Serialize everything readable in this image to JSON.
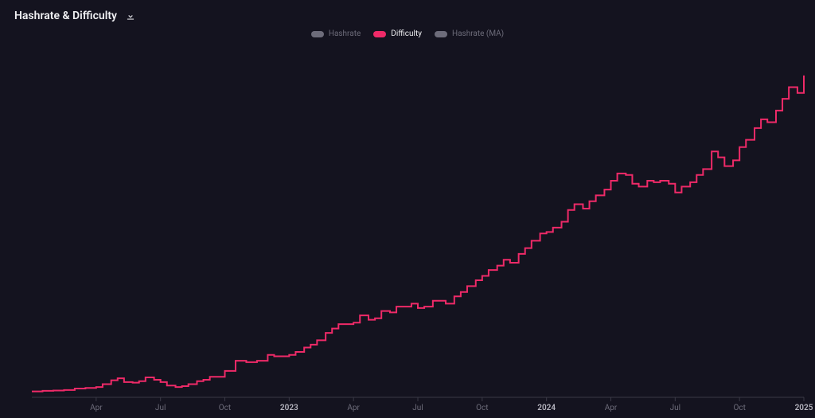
{
  "header": {
    "title": "Hashrate & Difficulty"
  },
  "legend": [
    {
      "key": "hashrate",
      "label": "Hashrate",
      "color": "#6d6c7a",
      "active": false
    },
    {
      "key": "difficulty",
      "label": "Difficulty",
      "color": "#ef2a68",
      "active": true
    },
    {
      "key": "hashrate_ma",
      "label": "Hashrate (MA)",
      "color": "#6d6c7a",
      "active": false
    }
  ],
  "chart": {
    "type": "line",
    "step_mode": "step-after",
    "background_color": "#14131f",
    "axis_color": "#3a3946",
    "tick_color": "#3a3946",
    "label_color": "#6d6c7a",
    "label_color_strong": "#b7b6c0",
    "tick_fontsize": 10,
    "title_fontsize": 14,
    "line_width": 2,
    "xlim": [
      0,
      36
    ],
    "ylim": [
      0,
      120
    ],
    "x_ticks": [
      {
        "pos": 3,
        "label": "Apr",
        "strong": false
      },
      {
        "pos": 6,
        "label": "Jul",
        "strong": false
      },
      {
        "pos": 9,
        "label": "Oct",
        "strong": false
      },
      {
        "pos": 12,
        "label": "2023",
        "strong": true
      },
      {
        "pos": 15,
        "label": "Apr",
        "strong": false
      },
      {
        "pos": 18,
        "label": "Jul",
        "strong": false
      },
      {
        "pos": 21,
        "label": "Oct",
        "strong": false
      },
      {
        "pos": 24,
        "label": "2024",
        "strong": true
      },
      {
        "pos": 27,
        "label": "Apr",
        "strong": false
      },
      {
        "pos": 30,
        "label": "Jul",
        "strong": false
      },
      {
        "pos": 33,
        "label": "Oct",
        "strong": false
      },
      {
        "pos": 36,
        "label": "2025",
        "strong": true
      }
    ],
    "series": {
      "difficulty": {
        "color": "#ef2a68",
        "points": [
          [
            0.0,
            2.0
          ],
          [
            0.5,
            2.2
          ],
          [
            1.0,
            2.3
          ],
          [
            1.5,
            2.5
          ],
          [
            2.0,
            3.0
          ],
          [
            2.5,
            3.2
          ],
          [
            3.0,
            3.5
          ],
          [
            3.3,
            4.5
          ],
          [
            3.7,
            5.8
          ],
          [
            4.0,
            6.5
          ],
          [
            4.3,
            5.2
          ],
          [
            4.7,
            5.0
          ],
          [
            5.0,
            5.5
          ],
          [
            5.3,
            6.8
          ],
          [
            5.7,
            6.0
          ],
          [
            6.0,
            5.2
          ],
          [
            6.3,
            4.0
          ],
          [
            6.7,
            3.5
          ],
          [
            7.0,
            3.8
          ],
          [
            7.3,
            4.5
          ],
          [
            7.7,
            5.5
          ],
          [
            8.0,
            6.0
          ],
          [
            8.3,
            7.0
          ],
          [
            8.7,
            7.0
          ],
          [
            9.0,
            9.0
          ],
          [
            9.5,
            12.5
          ],
          [
            10.0,
            12.0
          ],
          [
            10.5,
            12.5
          ],
          [
            11.0,
            14.5
          ],
          [
            11.3,
            14.0
          ],
          [
            11.7,
            14.0
          ],
          [
            12.0,
            14.5
          ],
          [
            12.3,
            15.5
          ],
          [
            12.7,
            17.0
          ],
          [
            13.0,
            18.0
          ],
          [
            13.3,
            19.5
          ],
          [
            13.7,
            22.0
          ],
          [
            14.0,
            23.5
          ],
          [
            14.3,
            25.0
          ],
          [
            14.7,
            25.0
          ],
          [
            15.0,
            25.5
          ],
          [
            15.3,
            28.0
          ],
          [
            15.7,
            26.5
          ],
          [
            16.0,
            27.0
          ],
          [
            16.3,
            29.5
          ],
          [
            16.7,
            29.0
          ],
          [
            17.0,
            31.0
          ],
          [
            17.3,
            31.0
          ],
          [
            17.7,
            32.0
          ],
          [
            18.0,
            30.5
          ],
          [
            18.3,
            31.0
          ],
          [
            18.7,
            33.0
          ],
          [
            19.0,
            33.0
          ],
          [
            19.3,
            32.0
          ],
          [
            19.7,
            34.5
          ],
          [
            20.0,
            36.0
          ],
          [
            20.3,
            38.0
          ],
          [
            20.7,
            40.0
          ],
          [
            21.0,
            41.5
          ],
          [
            21.3,
            43.5
          ],
          [
            21.7,
            45.0
          ],
          [
            22.0,
            47.0
          ],
          [
            22.3,
            46.0
          ],
          [
            22.7,
            49.0
          ],
          [
            23.0,
            51.0
          ],
          [
            23.3,
            53.5
          ],
          [
            23.7,
            56.0
          ],
          [
            24.0,
            56.5
          ],
          [
            24.3,
            58.0
          ],
          [
            24.7,
            60.0
          ],
          [
            25.0,
            64.0
          ],
          [
            25.3,
            66.0
          ],
          [
            25.7,
            64.5
          ],
          [
            26.0,
            67.0
          ],
          [
            26.3,
            69.0
          ],
          [
            26.7,
            71.0
          ],
          [
            27.0,
            74.0
          ],
          [
            27.3,
            76.5
          ],
          [
            27.7,
            76.0
          ],
          [
            28.0,
            73.0
          ],
          [
            28.3,
            72.0
          ],
          [
            28.7,
            74.0
          ],
          [
            29.0,
            73.5
          ],
          [
            29.3,
            74.0
          ],
          [
            29.7,
            73.0
          ],
          [
            30.0,
            70.0
          ],
          [
            30.3,
            72.0
          ],
          [
            30.7,
            73.5
          ],
          [
            31.0,
            76.0
          ],
          [
            31.3,
            78.0
          ],
          [
            31.7,
            84.0
          ],
          [
            32.0,
            82.0
          ],
          [
            32.3,
            79.0
          ],
          [
            32.7,
            81.0
          ],
          [
            33.0,
            85.5
          ],
          [
            33.3,
            88.0
          ],
          [
            33.7,
            92.0
          ],
          [
            34.0,
            95.0
          ],
          [
            34.3,
            94.0
          ],
          [
            34.7,
            98.0
          ],
          [
            35.0,
            102.0
          ],
          [
            35.3,
            106.0
          ],
          [
            35.7,
            104.0
          ],
          [
            36.0,
            110.0
          ]
        ]
      }
    }
  }
}
